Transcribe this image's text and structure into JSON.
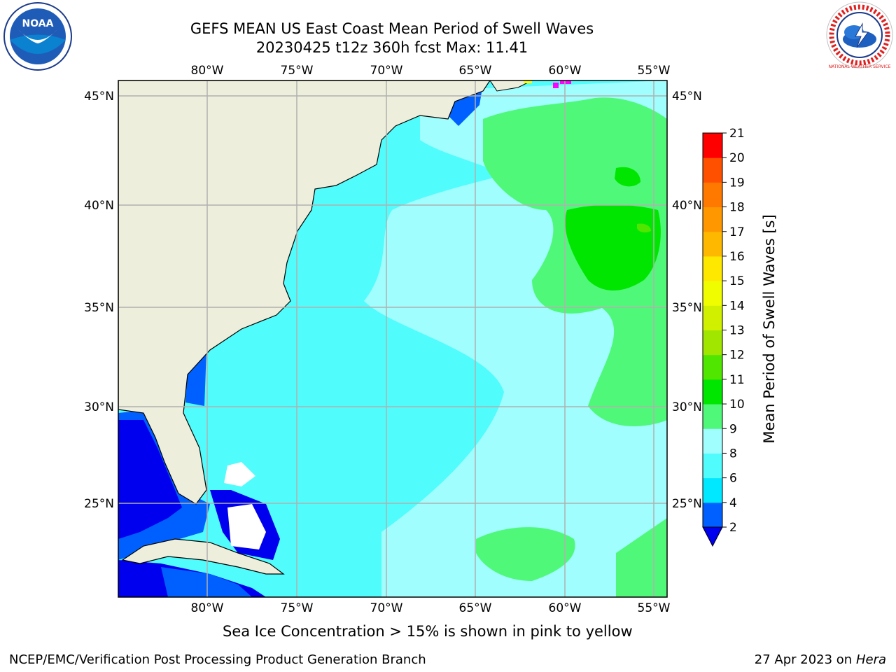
{
  "title_line1": "GEFS MEAN US East Coast Mean Period of Swell Waves",
  "title_line2": "20230425 t12z 360h fcst   Max: 11.41",
  "map": {
    "lon_ticks": [
      "80°W",
      "75°W",
      "70°W",
      "65°W",
      "60°W",
      "55°W"
    ],
    "lat_ticks": [
      "45°N",
      "40°N",
      "35°N",
      "30°N",
      "25°N"
    ]
  },
  "colorbar": {
    "label": "Mean Period of Swell Waves [s]",
    "ticks": [
      "2",
      "4",
      "6",
      "8",
      "9",
      "10",
      "11",
      "12",
      "13",
      "14",
      "15",
      "16",
      "17",
      "18",
      "19",
      "20",
      "21"
    ],
    "colors": [
      "#0060ff",
      "#00e8ff",
      "#50fcfc",
      "#a0fefe",
      "#50f87a",
      "#00e600",
      "#50e600",
      "#a0e600",
      "#d0f000",
      "#f0fc00",
      "#ffe800",
      "#ffb800",
      "#ff9800",
      "#ff7800",
      "#ff5000",
      "#ff0000"
    ],
    "under_color": "#0000ee"
  },
  "sea_ice_note": "Sea Ice Concentration > 15% is shown in pink to yellow",
  "footer_left": "NCEP/EMC/Verification Post Processing Product Generation Branch",
  "footer_right_date": "27 Apr 2023 on ",
  "footer_right_host": "Hera",
  "logos": {
    "left_text": "NOAA",
    "right_text": "NATIONAL WEATHER SERVICE"
  }
}
